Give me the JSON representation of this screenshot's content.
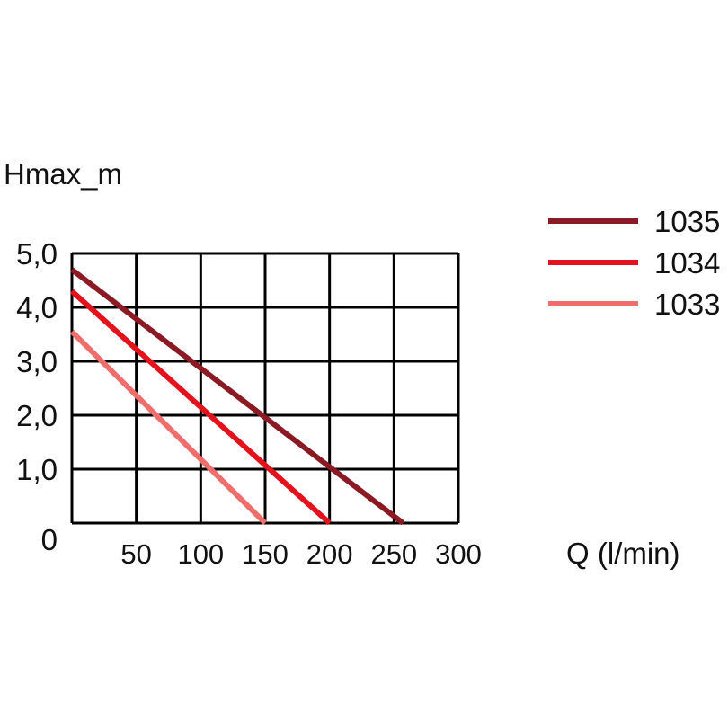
{
  "chart_data": {
    "type": "line",
    "ylabel": "Hmax_m",
    "xlabel": "Q (l/min)",
    "xlim": [
      0,
      300
    ],
    "ylim": [
      0,
      5
    ],
    "x_ticks": [
      50,
      100,
      150,
      200,
      250,
      300
    ],
    "x_tick_labels": [
      "50",
      "100",
      "150",
      "200",
      "250",
      "300"
    ],
    "y_ticks": [
      0,
      1,
      2,
      3,
      4,
      5
    ],
    "y_tick_labels": [
      "0",
      "1,0",
      "2,0",
      "3,0",
      "4,0",
      "5,0"
    ],
    "grid": true,
    "legend_position": "right",
    "series": [
      {
        "name": "1035",
        "color": "#8b1a24",
        "x": [
          0,
          257
        ],
        "y": [
          4.7,
          0
        ]
      },
      {
        "name": "1034",
        "color": "#e3121c",
        "x": [
          0,
          200
        ],
        "y": [
          4.3,
          0
        ]
      },
      {
        "name": "1033",
        "color": "#ee6e6c",
        "x": [
          0,
          150
        ],
        "y": [
          3.55,
          0
        ]
      }
    ]
  }
}
